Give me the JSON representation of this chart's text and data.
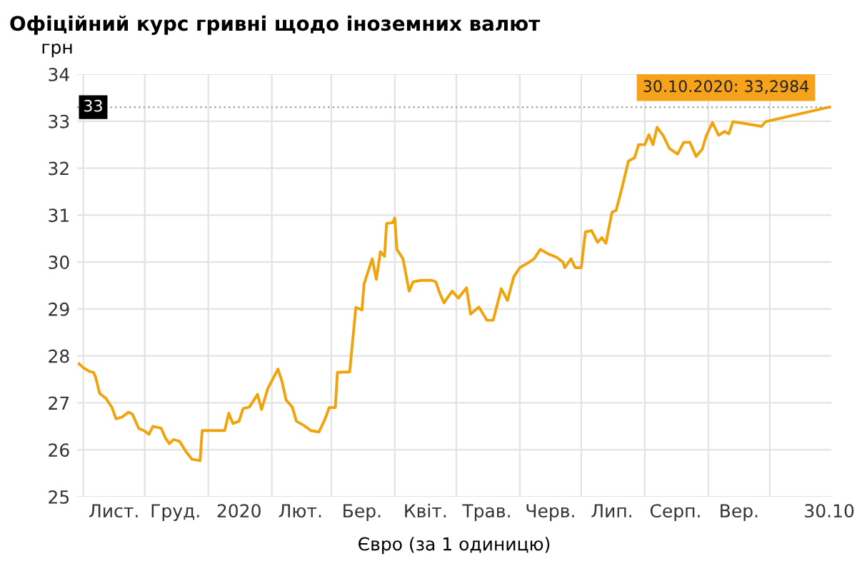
{
  "chart_data": {
    "type": "line",
    "title": "Офіційний курс гривні щодо іноземних валют",
    "xlabel": "Євро (за 1 одиницю)",
    "ylabel": "грн",
    "x": [
      "2019-10-30",
      "2019-11-01",
      "2019-11-04",
      "2019-11-06",
      "2019-11-07",
      "2019-11-09",
      "2019-11-12",
      "2019-11-15",
      "2019-11-17",
      "2019-11-20",
      "2019-11-23",
      "2019-11-25",
      "2019-11-28",
      "2019-12-01",
      "2019-12-03",
      "2019-12-05",
      "2019-12-09",
      "2019-12-11",
      "2019-12-13",
      "2019-12-15",
      "2019-12-18",
      "2019-12-21",
      "2019-12-24",
      "2019-12-28",
      "2019-12-29",
      "2020-01-09",
      "2020-01-11",
      "2020-01-13",
      "2020-01-16",
      "2020-01-18",
      "2020-01-21",
      "2020-01-25",
      "2020-01-27",
      "2020-01-30",
      "2020-02-01",
      "2020-02-04",
      "2020-02-06",
      "2020-02-08",
      "2020-02-11",
      "2020-02-13",
      "2020-02-17",
      "2020-02-20",
      "2020-02-24",
      "2020-02-27",
      "2020-02-29",
      "2020-03-03",
      "2020-03-04",
      "2020-03-10",
      "2020-03-13",
      "2020-03-16",
      "2020-03-17",
      "2020-03-21",
      "2020-03-23",
      "2020-03-25",
      "2020-03-27",
      "2020-03-28",
      "2020-03-31",
      "2020-04-01",
      "2020-04-02",
      "2020-04-05",
      "2020-04-08",
      "2020-04-10",
      "2020-04-14",
      "2020-04-19",
      "2020-04-21",
      "2020-04-23",
      "2020-04-25",
      "2020-04-29",
      "2020-05-02",
      "2020-05-06",
      "2020-05-08",
      "2020-05-12",
      "2020-05-16",
      "2020-05-19",
      "2020-05-23",
      "2020-05-26",
      "2020-05-29",
      "2020-06-01",
      "2020-06-05",
      "2020-06-08",
      "2020-06-11",
      "2020-06-15",
      "2020-06-19",
      "2020-06-22",
      "2020-06-23",
      "2020-06-26",
      "2020-06-28",
      "2020-07-01",
      "2020-07-03",
      "2020-07-06",
      "2020-07-09",
      "2020-07-11",
      "2020-07-13",
      "2020-07-16",
      "2020-07-18",
      "2020-07-21",
      "2020-07-24",
      "2020-07-27",
      "2020-07-29",
      "2020-08-01",
      "2020-08-03",
      "2020-08-05",
      "2020-08-07",
      "2020-08-10",
      "2020-08-13",
      "2020-08-17",
      "2020-08-20",
      "2020-08-23",
      "2020-08-26",
      "2020-08-29",
      "2020-08-31",
      "2020-09-03",
      "2020-09-06",
      "2020-09-09",
      "2020-09-11",
      "2020-09-13",
      "2020-09-27",
      "2020-09-29",
      "2020-10-30"
    ],
    "series": [
      {
        "color": "#f0a30a",
        "values": [
          27.83,
          27.75,
          27.67,
          27.65,
          27.55,
          27.2,
          27.1,
          26.9,
          26.66,
          26.7,
          26.8,
          26.76,
          26.46,
          26.4,
          26.33,
          26.5,
          26.46,
          26.26,
          26.13,
          26.22,
          26.18,
          25.97,
          25.8,
          25.77,
          26.41,
          26.41,
          26.78,
          26.56,
          26.61,
          26.88,
          26.91,
          27.18,
          26.86,
          27.3,
          27.47,
          27.72,
          27.45,
          27.06,
          26.91,
          26.61,
          26.51,
          26.41,
          26.38,
          26.66,
          26.9,
          26.9,
          27.65,
          27.66,
          29.03,
          28.98,
          29.53,
          30.07,
          29.63,
          30.22,
          30.12,
          30.82,
          30.84,
          30.94,
          30.27,
          30.07,
          29.38,
          29.58,
          29.61,
          29.61,
          29.58,
          29.33,
          29.13,
          29.38,
          29.23,
          29.45,
          28.89,
          29.04,
          28.76,
          28.76,
          29.43,
          29.18,
          29.68,
          29.88,
          29.98,
          30.07,
          30.27,
          30.17,
          30.1,
          30.0,
          29.88,
          30.07,
          29.88,
          29.88,
          30.64,
          30.67,
          30.42,
          30.52,
          30.4,
          31.06,
          31.1,
          31.6,
          32.15,
          32.22,
          32.5,
          32.5,
          32.71,
          32.5,
          32.87,
          32.69,
          32.42,
          32.3,
          32.55,
          32.55,
          32.25,
          32.4,
          32.69,
          32.97,
          32.7,
          32.78,
          32.73,
          32.99,
          32.89,
          32.99,
          33.2984
        ]
      }
    ],
    "xlim": [
      "2019-10-29",
      "2020-10-31"
    ],
    "xticks": [
      {
        "value": "2019-11-01",
        "label": null
      },
      {
        "value": "2019-11-16",
        "label": "Лист."
      },
      {
        "value": "2019-12-01",
        "label": null
      },
      {
        "value": "2019-12-16",
        "label": "Груд."
      },
      {
        "value": "2020-01-01",
        "label": null
      },
      {
        "value": "2020-01-16",
        "label": "2020"
      },
      {
        "value": "2020-02-01",
        "label": null
      },
      {
        "value": "2020-02-15",
        "label": "Лют."
      },
      {
        "value": "2020-03-01",
        "label": null
      },
      {
        "value": "2020-03-16",
        "label": "Бер."
      },
      {
        "value": "2020-04-01",
        "label": null
      },
      {
        "value": "2020-04-16",
        "label": "Квіт."
      },
      {
        "value": "2020-05-01",
        "label": null
      },
      {
        "value": "2020-05-16",
        "label": "Трав."
      },
      {
        "value": "2020-06-01",
        "label": null
      },
      {
        "value": "2020-06-16",
        "label": "Черв."
      },
      {
        "value": "2020-07-01",
        "label": null
      },
      {
        "value": "2020-07-16",
        "label": "Лип."
      },
      {
        "value": "2020-08-01",
        "label": null
      },
      {
        "value": "2020-08-16",
        "label": "Серп."
      },
      {
        "value": "2020-09-01",
        "label": null
      },
      {
        "value": "2020-09-16",
        "label": "Вер."
      },
      {
        "value": "2020-10-01",
        "label": null
      },
      {
        "value": "2020-10-30",
        "label": "30.10"
      }
    ],
    "ylim": [
      25,
      34
    ],
    "yticks": [
      25,
      26,
      27,
      28,
      29,
      30,
      31,
      32,
      33,
      34
    ],
    "grid": true,
    "line_style": "solid",
    "ref_lines": [
      {
        "axis": "y",
        "value": 33.2984,
        "label": "33",
        "color": "#aaaaaa",
        "line_style": "dotted"
      }
    ],
    "annotations": [
      {
        "text": "30.10.2020: 33,2984",
        "x": "2020-10-30",
        "y": 33.2984
      }
    ]
  }
}
